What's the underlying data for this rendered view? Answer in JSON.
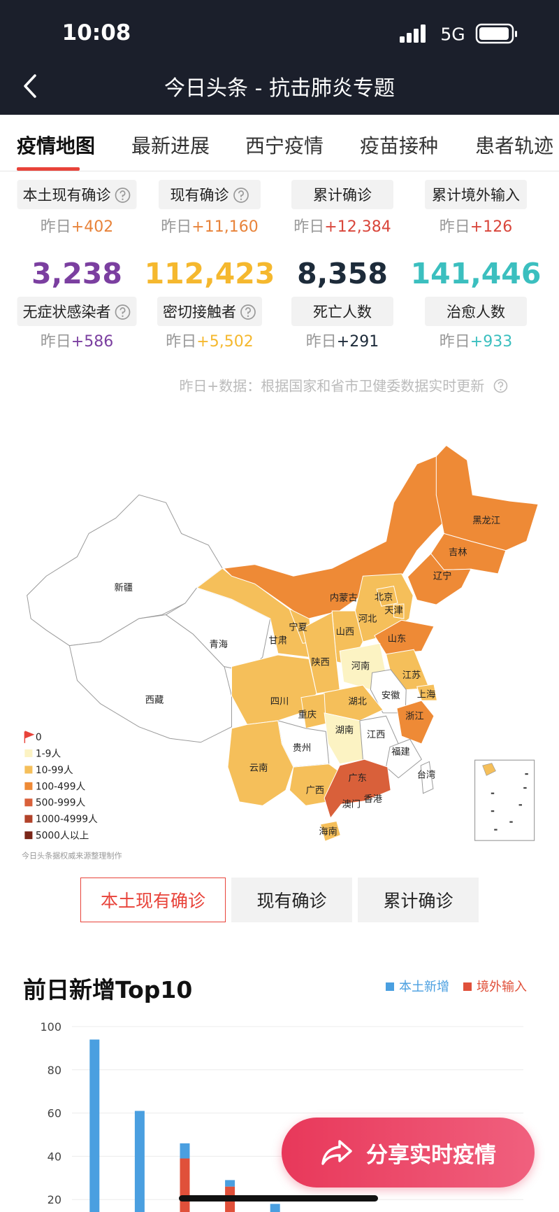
{
  "status_bar": {
    "time": "10:08",
    "network": "5G"
  },
  "nav": {
    "title": "今日头条 - 抗击肺炎专题"
  },
  "tabs": [
    "疫情地图",
    "最新进展",
    "西宁疫情",
    "疫苗接种",
    "患者轨迹"
  ],
  "stats": {
    "rows": [
      [
        {
          "label": "本土现有确诊",
          "has_info": true,
          "delta_label": "昨日",
          "delta": "+402",
          "color": "#e8833a"
        },
        {
          "label": "现有确诊",
          "has_info": true,
          "delta_label": "昨日",
          "delta": "+11,160",
          "color": "#e8833a"
        },
        {
          "label": "累计确诊",
          "has_info": false,
          "delta_label": "昨日",
          "delta": "+12,384",
          "color": "#d9463b"
        },
        {
          "label": "累计境外输入",
          "has_info": false,
          "delta_label": "昨日",
          "delta": "+126",
          "color": "#d9463b"
        }
      ],
      [
        {
          "value": "3,238",
          "label": "无症状感染者",
          "has_info": true,
          "delta_label": "昨日",
          "delta": "+586",
          "color": "#7b3fa0"
        },
        {
          "value": "112,423",
          "label": "密切接触者",
          "has_info": true,
          "delta_label": "昨日",
          "delta": "+5,502",
          "color": "#f5b82e"
        },
        {
          "value": "8,358",
          "label": "死亡人数",
          "has_info": false,
          "delta_label": "昨日",
          "delta": "+291",
          "color": "#1d2b3a"
        },
        {
          "value": "141,446",
          "label": "治愈人数",
          "has_info": false,
          "delta_label": "昨日",
          "delta": "+933",
          "color": "#3bbfbf"
        }
      ]
    ],
    "note": "昨日+数据：根据国家和省市卫健委数据实时更新"
  },
  "map": {
    "provinces": [
      {
        "name": "新疆",
        "color": "#ffffff"
      },
      {
        "name": "西藏",
        "color": "#ffffff"
      },
      {
        "name": "青海",
        "color": "#ffffff"
      },
      {
        "name": "甘肃",
        "color": "#f5bf5a"
      },
      {
        "name": "宁夏",
        "color": "#f5bf5a"
      },
      {
        "name": "内蒙古",
        "color": "#ee8a36"
      },
      {
        "name": "黑龙江",
        "color": "#ee8a36"
      },
      {
        "name": "吉林",
        "color": "#ee8a36"
      },
      {
        "name": "辽宁",
        "color": "#ee8a36"
      },
      {
        "name": "河北",
        "color": "#f5bf5a"
      },
      {
        "name": "北京",
        "color": "#f5bf5a"
      },
      {
        "name": "天津",
        "color": "#f5bf5a"
      },
      {
        "name": "山西",
        "color": "#f5bf5a"
      },
      {
        "name": "山东",
        "color": "#ee8a36"
      },
      {
        "name": "陕西",
        "color": "#f5bf5a"
      },
      {
        "name": "河南",
        "color": "#fcf3c3"
      },
      {
        "name": "江苏",
        "color": "#f5bf5a"
      },
      {
        "name": "安徽",
        "color": "#ffffff"
      },
      {
        "name": "上海",
        "color": "#f5bf5a"
      },
      {
        "name": "湖北",
        "color": "#f5bf5a"
      },
      {
        "name": "浙江",
        "color": "#ee8a36"
      },
      {
        "name": "四川",
        "color": "#f5bf5a"
      },
      {
        "name": "重庆",
        "color": "#f5bf5a"
      },
      {
        "name": "湖南",
        "color": "#fcf3c3"
      },
      {
        "name": "江西",
        "color": "#ffffff"
      },
      {
        "name": "福建",
        "color": "#ffffff"
      },
      {
        "name": "贵州",
        "color": "#ffffff"
      },
      {
        "name": "云南",
        "color": "#f5bf5a"
      },
      {
        "name": "广西",
        "color": "#f5bf5a"
      },
      {
        "name": "广东",
        "color": "#d9603a"
      },
      {
        "name": "台湾",
        "color": "#ffffff"
      },
      {
        "name": "香港",
        "color": "#ffffff"
      },
      {
        "name": "澳门",
        "color": "#ffffff"
      },
      {
        "name": "海南",
        "color": "#f5bf5a"
      }
    ],
    "legend": [
      {
        "label": "0",
        "color": "#e8433a"
      },
      {
        "label": "1-9人",
        "color": "#fcf3c3"
      },
      {
        "label": "10-99人",
        "color": "#f5bf5a"
      },
      {
        "label": "100-499人",
        "color": "#ee8a36"
      },
      {
        "label": "500-999人",
        "color": "#d9603a"
      },
      {
        "label": "1000-4999人",
        "color": "#b2432a"
      },
      {
        "label": "5000人以上",
        "color": "#7a2618"
      }
    ],
    "source": "今日头条据权威来源整理制作"
  },
  "map_buttons": [
    "本土现有确诊",
    "现有确诊",
    "累计确诊"
  ],
  "chart_data": {
    "type": "bar",
    "title": "前日新增Top10",
    "categories": [
      null,
      null,
      null,
      null,
      null
    ],
    "series": [
      {
        "name": "本土新增",
        "color": "#4a9fe0",
        "values": [
          94,
          61,
          7,
          3,
          18
        ]
      },
      {
        "name": "境外输入",
        "color": "#e0503a",
        "values": [
          0,
          0,
          39,
          26,
          0
        ]
      }
    ],
    "stacked": true,
    "ylim": [
      0,
      100
    ],
    "yticks": [
      20,
      40,
      60,
      80,
      100
    ],
    "grid": true
  },
  "share_button": "分享实时疫情"
}
